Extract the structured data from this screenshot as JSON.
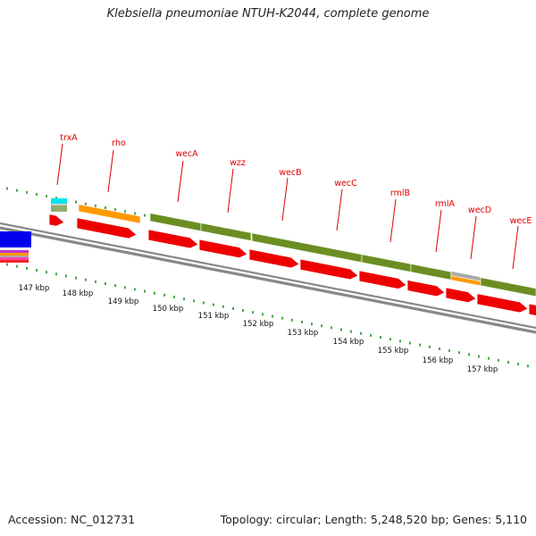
{
  "title": "Klebsiella pneumoniae NTUH-K2044, complete genome",
  "accession": "Accession: NC_012731",
  "summary": "Topology: circular; Length: 5,248,520 bp; Genes: 5,110",
  "colors": {
    "backbone": "#888888",
    "gene_arrow": "#ee0000",
    "label": "#dd0000",
    "tick": "#008000",
    "olive": "#6b8e23",
    "orange": "#ff9900",
    "blue": "#0000ee",
    "cyan": "#00e5ee",
    "grey": "#aaaaaa"
  },
  "gene_labels": [
    "trxA",
    "rho",
    "wecA",
    "wzz",
    "wecB",
    "wecC",
    "rmlB",
    "rmlA",
    "wecD",
    "wecE"
  ],
  "kbp_labels": [
    "147 kbp",
    "148 kbp",
    "149 kbp",
    "150 kbp",
    "151 kbp",
    "152 kbp",
    "153 kbp",
    "154 kbp",
    "155 kbp",
    "156 kbp",
    "157 kbp"
  ]
}
